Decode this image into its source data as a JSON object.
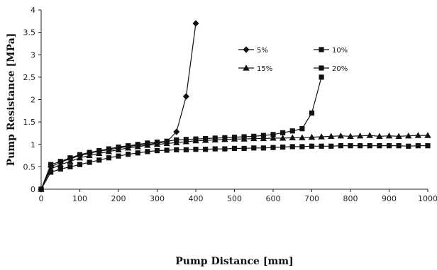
{
  "chart_data": {
    "type": "line",
    "title": "",
    "xlabel": "Pump Distance [mm]",
    "ylabel": "Pump Resistance [MPa]",
    "xlim": [
      0,
      1000
    ],
    "ylim": [
      0,
      4
    ],
    "xticks": [
      0,
      100,
      200,
      300,
      400,
      500,
      600,
      700,
      800,
      900,
      1000
    ],
    "yticks": [
      0,
      0.5,
      1,
      1.5,
      2,
      2.5,
      3,
      3.5,
      4
    ],
    "grid": false,
    "legend_position": "upper-right",
    "series": [
      {
        "name": "5%",
        "marker": "diamond",
        "x": [
          0,
          25,
          50,
          75,
          100,
          125,
          150,
          175,
          200,
          225,
          250,
          275,
          300,
          325,
          350,
          375,
          400
        ],
        "y": [
          0,
          0.5,
          0.6,
          0.68,
          0.75,
          0.8,
          0.85,
          0.88,
          0.92,
          0.95,
          0.98,
          1.0,
          1.03,
          1.06,
          1.28,
          2.07,
          3.7
        ]
      },
      {
        "name": "10%",
        "marker": "square",
        "x": [
          0,
          25,
          50,
          75,
          100,
          125,
          150,
          175,
          200,
          225,
          250,
          275,
          300,
          325,
          350,
          375,
          400,
          425,
          450,
          475,
          500,
          525,
          550,
          575,
          600,
          625,
          650,
          675,
          700,
          725
        ],
        "y": [
          0,
          0.55,
          0.62,
          0.7,
          0.77,
          0.82,
          0.86,
          0.9,
          0.94,
          0.97,
          1.0,
          1.03,
          1.05,
          1.07,
          1.1,
          1.11,
          1.12,
          1.13,
          1.14,
          1.15,
          1.16,
          1.17,
          1.18,
          1.2,
          1.22,
          1.26,
          1.3,
          1.35,
          1.7,
          2.5
        ]
      },
      {
        "name": "15%",
        "marker": "triangle",
        "x": [
          0,
          25,
          50,
          75,
          100,
          125,
          150,
          175,
          200,
          225,
          250,
          275,
          300,
          325,
          350,
          375,
          400,
          425,
          450,
          475,
          500,
          525,
          550,
          575,
          600,
          625,
          650,
          675,
          700,
          725,
          750,
          775,
          800,
          825,
          850,
          875,
          900,
          925,
          950,
          975,
          1000
        ],
        "y": [
          0,
          0.45,
          0.55,
          0.62,
          0.7,
          0.75,
          0.8,
          0.84,
          0.88,
          0.92,
          0.95,
          0.98,
          1.0,
          1.02,
          1.04,
          1.06,
          1.08,
          1.09,
          1.1,
          1.11,
          1.12,
          1.12,
          1.13,
          1.13,
          1.14,
          1.14,
          1.15,
          1.15,
          1.16,
          1.17,
          1.18,
          1.19,
          1.18,
          1.19,
          1.2,
          1.18,
          1.19,
          1.18,
          1.19,
          1.2,
          1.2
        ]
      },
      {
        "name": "20%",
        "marker": "square",
        "x": [
          0,
          25,
          50,
          75,
          100,
          125,
          150,
          175,
          200,
          225,
          250,
          275,
          300,
          325,
          350,
          375,
          400,
          425,
          450,
          475,
          500,
          525,
          550,
          575,
          600,
          625,
          650,
          675,
          700,
          725,
          750,
          775,
          800,
          825,
          850,
          875,
          900,
          925,
          950,
          975,
          1000
        ],
        "y": [
          0,
          0.38,
          0.45,
          0.5,
          0.55,
          0.6,
          0.65,
          0.7,
          0.74,
          0.78,
          0.81,
          0.84,
          0.86,
          0.87,
          0.88,
          0.88,
          0.89,
          0.89,
          0.9,
          0.9,
          0.91,
          0.91,
          0.92,
          0.92,
          0.93,
          0.94,
          0.95,
          0.95,
          0.96,
          0.96,
          0.96,
          0.97,
          0.97,
          0.97,
          0.97,
          0.97,
          0.97,
          0.97,
          0.96,
          0.97,
          0.97
        ]
      }
    ]
  }
}
